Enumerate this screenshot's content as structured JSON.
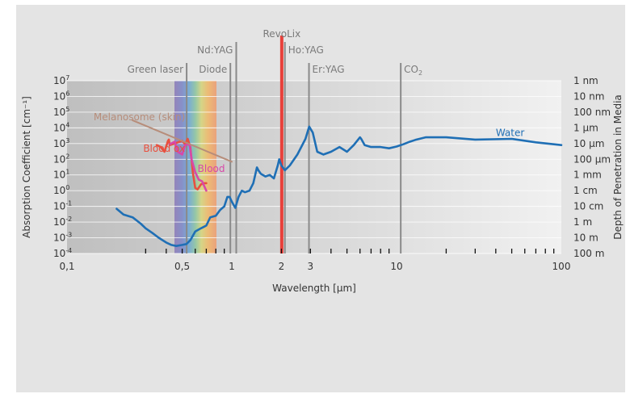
{
  "chart_data": {
    "type": "line",
    "xlabel": "Wavelength [µm]",
    "ylabel": "Absorption Coefficient [cm⁻¹]",
    "ylabel_right": "Depth of Penetration in Media",
    "x_scale": "log",
    "y_scale": "log",
    "xlim": [
      0.1,
      100
    ],
    "ylim": [
      0.0001,
      10000000
    ],
    "grid": true,
    "x_tick_labels": [
      {
        "value": 0.1,
        "label": "0,1"
      },
      {
        "value": 0.5,
        "label": "0,5"
      },
      {
        "value": 1,
        "label": "1"
      },
      {
        "value": 2,
        "label": "2"
      },
      {
        "value": 3,
        "label": "3"
      },
      {
        "value": 10,
        "label": "10"
      },
      {
        "value": 100,
        "label": "100"
      }
    ],
    "y_tick_labels": [
      {
        "value": 10000000,
        "base": "10",
        "exp": "7"
      },
      {
        "value": 1000000,
        "base": "10",
        "exp": "6"
      },
      {
        "value": 100000,
        "base": "10",
        "exp": "5"
      },
      {
        "value": 10000,
        "base": "10",
        "exp": "4"
      },
      {
        "value": 1000,
        "base": "10",
        "exp": "3"
      },
      {
        "value": 100,
        "base": "10",
        "exp": "2"
      },
      {
        "value": 10,
        "base": "10",
        "exp": "1"
      },
      {
        "value": 1,
        "base": "10",
        "exp": "0"
      },
      {
        "value": 0.1,
        "base": "10",
        "exp": "-1"
      },
      {
        "value": 0.01,
        "base": "10",
        "exp": "-2"
      },
      {
        "value": 0.001,
        "base": "10",
        "exp": "-3"
      },
      {
        "value": 0.0001,
        "base": "10",
        "exp": "-4"
      }
    ],
    "right_tick_labels": [
      {
        "value": 10000000,
        "label": "1 nm"
      },
      {
        "value": 1000000,
        "label": "10 nm"
      },
      {
        "value": 100000,
        "label": "100 nm"
      },
      {
        "value": 10000,
        "label": "1 µm"
      },
      {
        "value": 1000,
        "label": "10 µm"
      },
      {
        "value": 100,
        "label": "100 µm"
      },
      {
        "value": 10,
        "label": "1 mm"
      },
      {
        "value": 1,
        "label": "1 cm"
      },
      {
        "value": 0.1,
        "label": "10 cm"
      },
      {
        "value": 0.01,
        "label": "1 m"
      },
      {
        "value": 0.001,
        "label": "10 m"
      },
      {
        "value": 0.0001,
        "label": "100 m"
      }
    ],
    "lasers": [
      {
        "name": "Green laser",
        "wavelength": 0.532,
        "label_row": 1,
        "label_anchor": "end",
        "highlight": false
      },
      {
        "name": "Diode",
        "wavelength": 0.98,
        "label_row": 1,
        "label_anchor": "end",
        "highlight": false
      },
      {
        "name": "Nd:YAG",
        "wavelength": 1.064,
        "label_row": 2,
        "label_anchor": "end",
        "highlight": false
      },
      {
        "name": "RevoLix",
        "wavelength": 2.01,
        "label_row": 3,
        "label_anchor": "middle",
        "highlight": true
      },
      {
        "name": "Ho:YAG",
        "wavelength": 2.1,
        "label_row": 2,
        "label_anchor": "start",
        "highlight": false
      },
      {
        "name": "Er:YAG",
        "wavelength": 2.94,
        "label_row": 1,
        "label_anchor": "start",
        "highlight": false
      },
      {
        "name": "CO",
        "sub": "2",
        "wavelength": 10.6,
        "label_row": 1,
        "label_anchor": "start",
        "highlight": false
      }
    ],
    "series": [
      {
        "name": "Water",
        "color": "#1f6fb5",
        "label_at": [
          40,
          3000
        ],
        "x": [
          0.2,
          0.22,
          0.25,
          0.28,
          0.3,
          0.33,
          0.36,
          0.4,
          0.43,
          0.46,
          0.5,
          0.53,
          0.56,
          0.6,
          0.65,
          0.7,
          0.74,
          0.8,
          0.85,
          0.9,
          0.94,
          0.97,
          1.0,
          1.05,
          1.1,
          1.15,
          1.2,
          1.28,
          1.35,
          1.42,
          1.45,
          1.5,
          1.6,
          1.7,
          1.8,
          1.9,
          1.94,
          2.0,
          2.1,
          2.25,
          2.5,
          2.8,
          2.95,
          3.1,
          3.3,
          3.6,
          4.0,
          4.5,
          5.0,
          5.5,
          6.0,
          6.1,
          6.4,
          7.0,
          8.0,
          9.0,
          10.0,
          11.0,
          12.0,
          13.0,
          15.0,
          20.0,
          30.0,
          50.0,
          70.0,
          100.0
        ],
        "y": [
          0.07,
          0.03,
          0.02,
          0.008,
          0.004,
          0.002,
          0.001,
          0.0005,
          0.00035,
          0.0003,
          0.00035,
          0.0004,
          0.0007,
          0.0025,
          0.004,
          0.006,
          0.02,
          0.025,
          0.06,
          0.1,
          0.4,
          0.4,
          0.2,
          0.08,
          0.4,
          1.0,
          0.8,
          1.0,
          3.0,
          30.0,
          20.0,
          12.0,
          8.0,
          10.0,
          6.0,
          40.0,
          100.0,
          40.0,
          20.0,
          40.0,
          200.0,
          2000.0,
          12000.0,
          5000.0,
          300.0,
          200.0,
          300.0,
          600.0,
          300.0,
          800.0,
          2500.0,
          2000.0,
          800.0,
          600.0,
          600.0,
          500.0,
          650.0,
          900.0,
          1300.0,
          1700.0,
          2500.0,
          2500.0,
          1800.0,
          2000.0,
          1200.0,
          800.0
        ]
      },
      {
        "name": "Blood ox",
        "color": "#e8503f",
        "label_at": [
          0.29,
          300
        ],
        "x": [
          0.35,
          0.37,
          0.39,
          0.41,
          0.415,
          0.42,
          0.45,
          0.5,
          0.52,
          0.54,
          0.56,
          0.58,
          0.6,
          0.62,
          0.65,
          0.68,
          0.7
        ],
        "y": [
          800,
          600,
          300,
          1500,
          1800,
          800,
          1000,
          1500,
          900,
          2000,
          600,
          15,
          1.5,
          1.2,
          2.5,
          3,
          3
        ]
      },
      {
        "name": "Blood",
        "color": "#d848a8",
        "label_at": [
          0.62,
          16
        ],
        "x": [
          0.42,
          0.45,
          0.47,
          0.5,
          0.52,
          0.54,
          0.555,
          0.57,
          0.6,
          0.63,
          0.66,
          0.7
        ],
        "y": [
          900,
          1300,
          300,
          200,
          800,
          900,
          800,
          100,
          15,
          5,
          4,
          1
        ]
      },
      {
        "name": "Melanosome (skin)",
        "color": "#b78d7a",
        "label_at": [
          0.145,
          30000
        ],
        "x": [
          0.25,
          1.0
        ],
        "y": [
          30000,
          70
        ]
      }
    ]
  }
}
